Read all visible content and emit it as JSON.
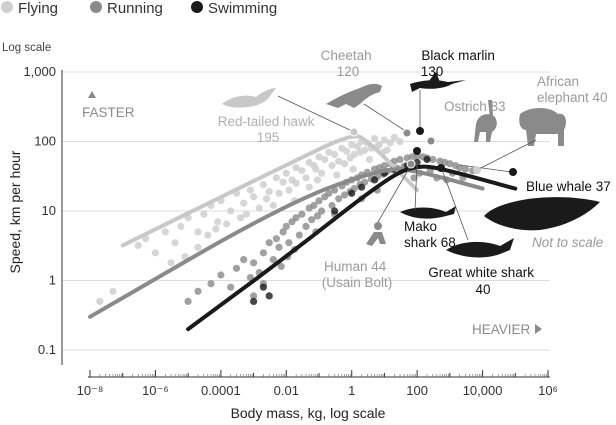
{
  "chart_data": {
    "type": "scatter",
    "title": "",
    "scale_note": "Log scale",
    "xlabel": "Body mass, kg, log scale",
    "ylabel": "Speed, km per hour",
    "xscale": "log",
    "yscale": "log",
    "xlim": [
      1e-09,
      1000000.0
    ],
    "ylim": [
      0.07,
      1500
    ],
    "grid": "horizontal",
    "legend_position": "top-left",
    "x_ticks": [
      {
        "value": 1e-08,
        "label": "10⁻⁸"
      },
      {
        "value": 1e-06,
        "label": "10⁻⁶"
      },
      {
        "value": 0.0001,
        "label": "0.0001"
      },
      {
        "value": 0.01,
        "label": "0.01"
      },
      {
        "value": 1,
        "label": "1"
      },
      {
        "value": 100,
        "label": "100"
      },
      {
        "value": 10000,
        "label": "10,000"
      },
      {
        "value": 1000000,
        "label": "10⁶"
      }
    ],
    "y_ticks": [
      {
        "value": 0.1,
        "label": "0.1"
      },
      {
        "value": 1,
        "label": "1"
      },
      {
        "value": 10,
        "label": "10"
      },
      {
        "value": 100,
        "label": "100"
      },
      {
        "value": 1000,
        "label": "1,000"
      }
    ],
    "direction_labels": {
      "faster": "FASTER",
      "heavier": "HEAVIER"
    },
    "series": [
      {
        "name": "Flying",
        "color": "#cfcfcf",
        "points": [
          [
            3e-07,
            3.2
          ],
          [
            5e-07,
            4
          ],
          [
            1e-06,
            2.5
          ],
          [
            2e-06,
            5
          ],
          [
            4e-06,
            3.5
          ],
          [
            6e-06,
            6
          ],
          [
            1e-05,
            8
          ],
          [
            2e-05,
            5
          ],
          [
            3e-05,
            9
          ],
          [
            5e-05,
            12
          ],
          [
            8e-05,
            7
          ],
          [
            0.0001,
            14
          ],
          [
            0.0002,
            10
          ],
          [
            0.0003,
            18
          ],
          [
            0.0005,
            13
          ],
          [
            0.0008,
            20
          ],
          [
            0.001,
            16
          ],
          [
            0.002,
            24
          ],
          [
            0.003,
            19
          ],
          [
            0.005,
            30
          ],
          [
            0.008,
            26
          ],
          [
            0.01,
            35
          ],
          [
            0.015,
            28
          ],
          [
            0.02,
            42
          ],
          [
            0.03,
            38
          ],
          [
            0.05,
            50
          ],
          [
            0.07,
            45
          ],
          [
            0.1,
            60
          ],
          [
            0.15,
            55
          ],
          [
            0.2,
            70
          ],
          [
            0.3,
            65
          ],
          [
            0.5,
            80
          ],
          [
            0.7,
            72
          ],
          [
            1,
            90
          ],
          [
            1.5,
            85
          ],
          [
            2,
            100
          ],
          [
            3,
            95
          ],
          [
            5,
            110
          ],
          [
            7,
            90
          ],
          [
            10,
            105
          ],
          [
            15,
            95
          ],
          [
            20,
            115
          ],
          [
            30,
            100
          ],
          [
            0.004,
            12
          ],
          [
            0.006,
            18
          ],
          [
            0.02,
            25
          ],
          [
            0.04,
            30
          ],
          [
            0.08,
            40
          ],
          [
            0.12,
            35
          ],
          [
            0.25,
            45
          ],
          [
            0.4,
            52
          ],
          [
            0.6,
            48
          ],
          [
            0.9,
            58
          ],
          [
            1.2,
            65
          ],
          [
            1.8,
            70
          ],
          [
            2.5,
            75
          ],
          [
            4,
            80
          ],
          [
            6,
            85
          ],
          [
            9,
            70
          ],
          [
            12,
            75
          ],
          [
            0.05,
            22
          ],
          [
            0.09,
            28
          ],
          [
            0.35,
            33
          ],
          [
            1.1,
            40
          ],
          [
            3.5,
            55
          ],
          [
            0.0006,
            9
          ],
          [
            0.0015,
            11
          ],
          [
            0.0025,
            15
          ],
          [
            0.012,
            20
          ],
          [
            0.018,
            14
          ],
          [
            2e-08,
            0.5
          ],
          [
            5e-08,
            0.7
          ],
          [
            3e-06,
            1.8
          ],
          [
            8e-06,
            2.2
          ],
          [
            2e-05,
            3
          ],
          [
            4e-05,
            4.5
          ],
          [
            7e-05,
            5.5
          ],
          [
            0.00015,
            6.5
          ],
          [
            0.0004,
            8
          ]
        ]
      },
      {
        "name": "Running",
        "color": "#8a8a8a",
        "points": [
          [
            1e-05,
            0.5
          ],
          [
            2e-05,
            0.7
          ],
          [
            5e-05,
            0.9
          ],
          [
            0.0001,
            1.2
          ],
          [
            0.0002,
            0.8
          ],
          [
            0.0003,
            1.5
          ],
          [
            0.0005,
            2
          ],
          [
            0.001,
            1.8
          ],
          [
            0.002,
            2.5
          ],
          [
            0.003,
            3.5
          ],
          [
            0.005,
            4
          ],
          [
            0.008,
            5
          ],
          [
            0.01,
            6
          ],
          [
            0.015,
            7
          ],
          [
            0.02,
            8
          ],
          [
            0.03,
            9
          ],
          [
            0.05,
            11
          ],
          [
            0.07,
            12
          ],
          [
            0.1,
            14
          ],
          [
            0.15,
            16
          ],
          [
            0.2,
            18
          ],
          [
            0.3,
            20
          ],
          [
            0.5,
            23
          ],
          [
            0.7,
            26
          ],
          [
            1,
            28
          ],
          [
            1.5,
            30
          ],
          [
            2,
            33
          ],
          [
            3,
            36
          ],
          [
            5,
            40
          ],
          [
            7,
            42
          ],
          [
            10,
            45
          ],
          [
            15,
            48
          ],
          [
            20,
            52
          ],
          [
            30,
            55
          ],
          [
            50,
            58
          ],
          [
            70,
            60
          ],
          [
            100,
            62
          ],
          [
            150,
            60
          ],
          [
            200,
            58
          ],
          [
            300,
            55
          ],
          [
            500,
            52
          ],
          [
            700,
            50
          ],
          [
            1000,
            48
          ],
          [
            1500,
            45
          ],
          [
            2000,
            42
          ],
          [
            3000,
            40
          ],
          [
            5000,
            38
          ],
          [
            0.004,
            2
          ],
          [
            0.006,
            3
          ],
          [
            0.012,
            3.5
          ],
          [
            0.025,
            4.5
          ],
          [
            0.04,
            6
          ],
          [
            0.06,
            7.5
          ],
          [
            0.09,
            8.5
          ],
          [
            0.12,
            10
          ],
          [
            0.25,
            12
          ],
          [
            0.4,
            15
          ],
          [
            0.6,
            17
          ],
          [
            0.9,
            19
          ],
          [
            1.2,
            21
          ],
          [
            1.8,
            24
          ],
          [
            2.5,
            26
          ],
          [
            4,
            29
          ],
          [
            6,
            31
          ],
          [
            9,
            34
          ],
          [
            12,
            37
          ],
          [
            18,
            39
          ],
          [
            25,
            41
          ],
          [
            40,
            44
          ],
          [
            60,
            46
          ],
          [
            0.001,
            0.6
          ],
          [
            0.002,
            0.9
          ],
          [
            0.0008,
            1.1
          ],
          [
            0.0015,
            1.3
          ],
          [
            0.007,
            1.6
          ],
          [
            0.011,
            2.2
          ],
          [
            0.018,
            2.8
          ],
          [
            80,
            30
          ],
          [
            120,
            35
          ],
          [
            250,
            38
          ],
          [
            400,
            30
          ],
          [
            800,
            28
          ],
          [
            1200,
            35
          ],
          [
            2500,
            30
          ],
          [
            0.08,
            5
          ],
          [
            0.3,
            9
          ],
          [
            2,
            15
          ],
          [
            6,
            20
          ]
        ]
      },
      {
        "name": "Swimming",
        "color": "#1a1a1a",
        "points": [
          [
            0.3,
            10
          ],
          [
            1,
            18
          ],
          [
            2,
            22
          ],
          [
            5,
            28
          ],
          [
            10,
            35
          ],
          [
            20,
            40
          ],
          [
            50,
            45
          ],
          [
            100,
            50
          ],
          [
            200,
            55
          ],
          [
            0.001,
            0.5
          ],
          [
            0.002,
            0.8
          ],
          [
            0.003,
            0.6
          ]
        ]
      }
    ],
    "fit_lines": [
      {
        "series": "Flying",
        "color": "#c8c8c8",
        "points": [
          [
            1e-07,
            3.2
          ],
          [
            0.01,
            46
          ],
          [
            1,
            130
          ],
          [
            3,
            105
          ],
          [
            100,
            20
          ]
        ]
      },
      {
        "series": "Running",
        "color": "#8a8a8a",
        "points": [
          [
            1e-08,
            0.3
          ],
          [
            0.01,
            13
          ],
          [
            10,
            42
          ],
          [
            100,
            38
          ],
          [
            10000,
            21
          ]
        ]
      },
      {
        "series": "Swimming",
        "color": "#1a1a1a",
        "points": [
          [
            1e-05,
            0.2
          ],
          [
            0.01,
            2.2
          ],
          [
            10,
            28
          ],
          [
            100,
            47
          ],
          [
            1000,
            38
          ],
          [
            100000,
            21
          ]
        ]
      }
    ],
    "annotations": [
      {
        "name": "Cheetah",
        "lines": [
          "Cheetah",
          "120"
        ],
        "value": 120,
        "group": "Running"
      },
      {
        "name": "Black marlin",
        "lines": [
          "Black marlin",
          "130"
        ],
        "value": 130,
        "group": "Swimming"
      },
      {
        "name": "African elephant",
        "lines": [
          "African",
          "elephant 40"
        ],
        "value": 40,
        "group": "Running"
      },
      {
        "name": "Ostrich",
        "lines": [
          "Ostrich 83"
        ],
        "value": 83,
        "group": "Running"
      },
      {
        "name": "Red-tailed hawk",
        "lines": [
          "Red-tailed hawk",
          "195"
        ],
        "value": 195,
        "group": "Flying"
      },
      {
        "name": "Blue whale",
        "lines": [
          "Blue whale 37"
        ],
        "value": 37,
        "group": "Swimming"
      },
      {
        "name": "Mako shark",
        "lines": [
          "Mako",
          "shark 68"
        ],
        "value": 68,
        "group": "Swimming"
      },
      {
        "name": "Human",
        "lines": [
          "Human 44",
          "(Usain Bolt)"
        ],
        "value": 44,
        "group": "Running"
      },
      {
        "name": "Great white shark",
        "lines": [
          "Great white shark",
          "40"
        ],
        "value": 40,
        "group": "Swimming"
      }
    ],
    "note": "Not to scale"
  }
}
